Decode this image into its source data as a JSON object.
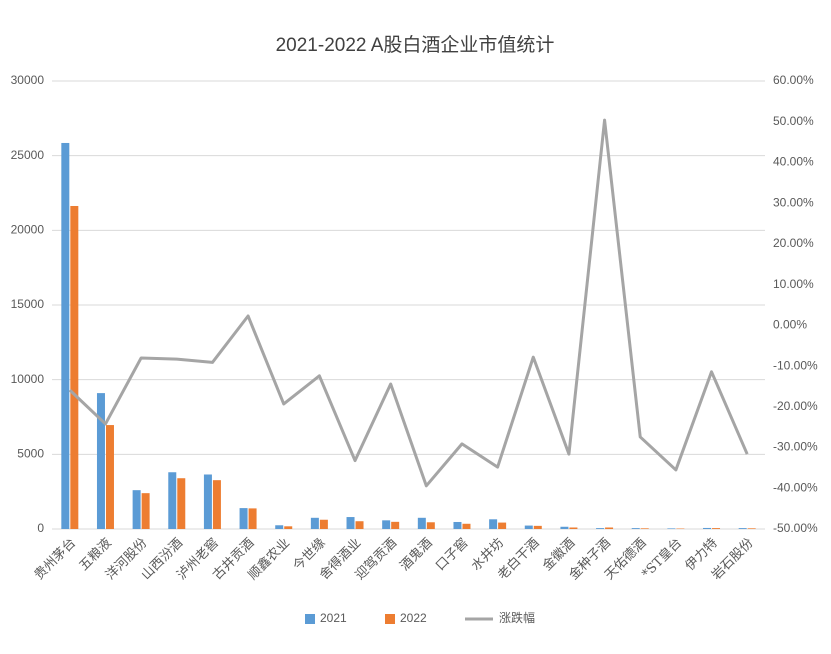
{
  "chart_data": {
    "type": "bar",
    "title": "2021-2022 A股白酒企业市值统计",
    "categories": [
      "贵州茅台",
      "五粮液",
      "洋河股份",
      "山西汾酒",
      "泸州老窖",
      "古井贡酒",
      "顺鑫农业",
      "今世缘",
      "舍得酒业",
      "迎驾贡酒",
      "酒鬼酒",
      "口子窖",
      "水井坊",
      "老白干酒",
      "金徽酒",
      "金种子酒",
      "天佑德酒",
      "*ST皇台",
      "伊力特",
      "岩石股份"
    ],
    "series": [
      {
        "name": "2021",
        "color": "#5b9bd5",
        "values": [
          25850,
          9100,
          2600,
          3800,
          3650,
          1400,
          250,
          750,
          800,
          580,
          750,
          470,
          650,
          230,
          150,
          60,
          60,
          40,
          70,
          60
        ]
      },
      {
        "name": "2022",
        "color": "#ed7d31",
        "values": [
          21630,
          6960,
          2400,
          3400,
          3270,
          1380,
          180,
          620,
          520,
          480,
          450,
          350,
          430,
          210,
          100,
          100,
          45,
          30,
          60,
          45
        ]
      },
      {
        "name": "涨跌幅",
        "color": "#a5a5a5",
        "type": "line",
        "axis": "y2",
        "values": [
          -15.9,
          -24.2,
          -8.0,
          -8.3,
          -9.1,
          2.3,
          -19.3,
          -12.4,
          -33.2,
          -14.4,
          -39.4,
          -29.1,
          -34.8,
          -7.8,
          -31.6,
          50.4,
          -27.4,
          -35.5,
          -11.4,
          -31.6
        ]
      }
    ],
    "ylim": [
      0,
      30000
    ],
    "yticks": [
      0,
      5000,
      10000,
      15000,
      20000,
      25000,
      30000
    ],
    "y2lim": [
      -50,
      60
    ],
    "y2ticks": [
      {
        "value": -50,
        "label": "-50.00%"
      },
      {
        "value": -40,
        "label": "-40.00%"
      },
      {
        "value": -30,
        "label": "-30.00%"
      },
      {
        "value": -20,
        "label": "-20.00%"
      },
      {
        "value": -10,
        "label": "-10.00%"
      },
      {
        "value": 0,
        "label": "0.00%"
      },
      {
        "value": 10,
        "label": "10.00%"
      },
      {
        "value": 20,
        "label": "20.00%"
      },
      {
        "value": 30,
        "label": "30.00%"
      },
      {
        "value": 40,
        "label": "40.00%"
      },
      {
        "value": 50,
        "label": "50.00%"
      },
      {
        "value": 60,
        "label": "60.00%"
      }
    ],
    "grid": true,
    "legend": "bottom"
  }
}
